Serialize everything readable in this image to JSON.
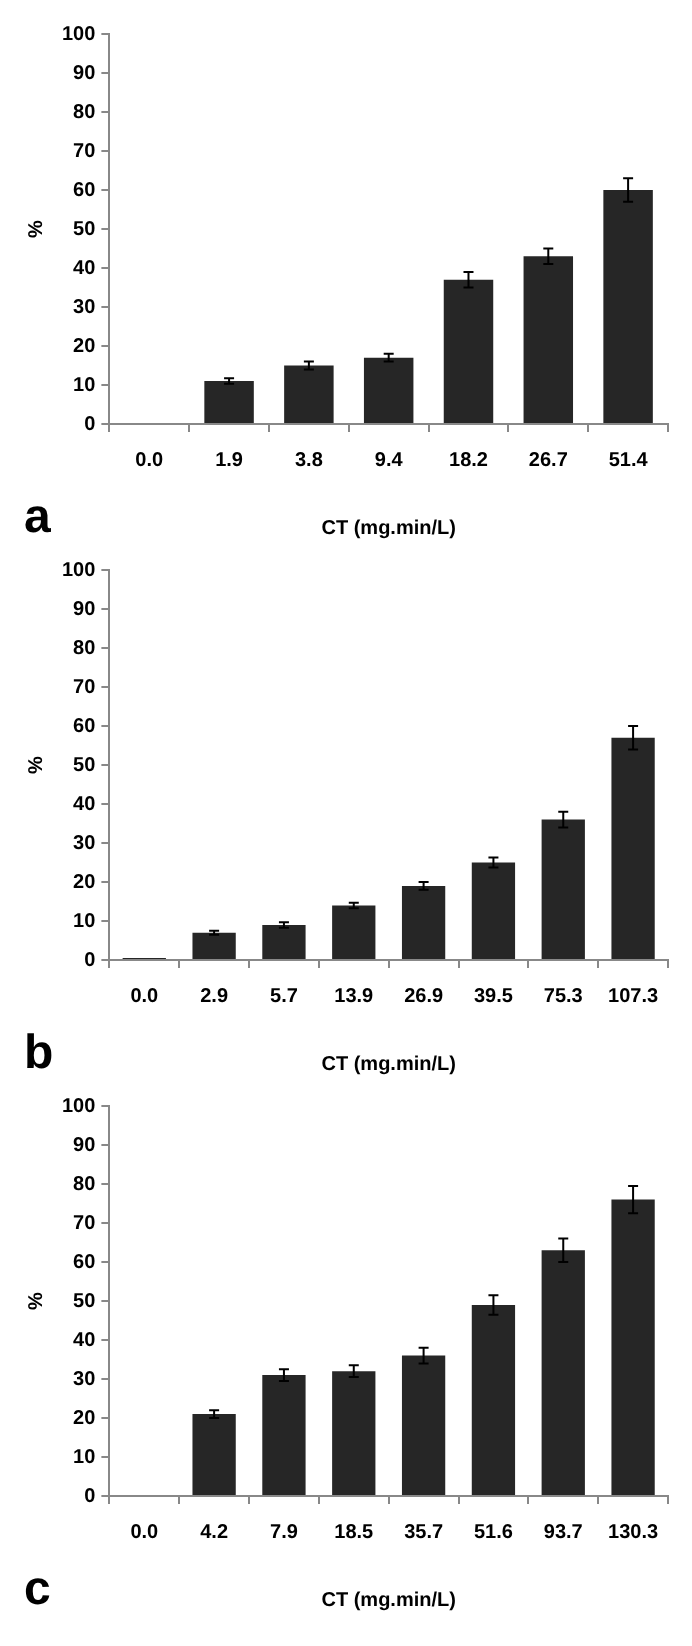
{
  "chart_data": [
    {
      "type": "bar",
      "categories": [
        "0.0",
        "1.9",
        "3.8",
        "9.4",
        "18.2",
        "26.7",
        "51.4"
      ],
      "values": [
        0,
        11,
        15,
        17,
        37,
        43,
        60
      ],
      "errors": [
        null,
        0.7,
        1,
        1,
        2,
        2,
        3
      ],
      "color": "#262626",
      "xlabel": "CT (mg.min/L)",
      "ylabel": "%",
      "ylim": [
        0,
        100
      ],
      "yticks": [
        0,
        10,
        20,
        30,
        40,
        50,
        60,
        70,
        80,
        90,
        100
      ],
      "grid": false,
      "legend": false,
      "annotations": [
        "a"
      ]
    },
    {
      "type": "bar",
      "categories": [
        "0.0",
        "2.9",
        "5.7",
        "13.9",
        "26.9",
        "39.5",
        "75.3",
        "107.3"
      ],
      "values": [
        0.5,
        7,
        9,
        14,
        19,
        25,
        36,
        57
      ],
      "errors": [
        null,
        0.5,
        0.7,
        0.7,
        1,
        1.3,
        2,
        3
      ],
      "color": "#262626",
      "xlabel": "CT (mg.min/L)",
      "ylabel": "%",
      "ylim": [
        0,
        100
      ],
      "yticks": [
        0,
        10,
        20,
        30,
        40,
        50,
        60,
        70,
        80,
        90,
        100
      ],
      "grid": false,
      "legend": false,
      "annotations": [
        "b"
      ]
    },
    {
      "type": "bar",
      "categories": [
        "0.0",
        "4.2",
        "7.9",
        "18.5",
        "35.7",
        "51.6",
        "93.7",
        "130.3"
      ],
      "values": [
        0,
        21,
        31,
        32,
        36,
        49,
        63,
        76
      ],
      "errors": [
        null,
        1,
        1.5,
        1.5,
        2,
        2.5,
        3,
        3.5
      ],
      "color": "#262626",
      "xlabel": "CT (mg.min/L)",
      "ylabel": "%",
      "ylim": [
        0,
        100
      ],
      "yticks": [
        0,
        10,
        20,
        30,
        40,
        50,
        60,
        70,
        80,
        90,
        100
      ],
      "grid": false,
      "legend": false,
      "annotations": [
        "c"
      ]
    }
  ]
}
